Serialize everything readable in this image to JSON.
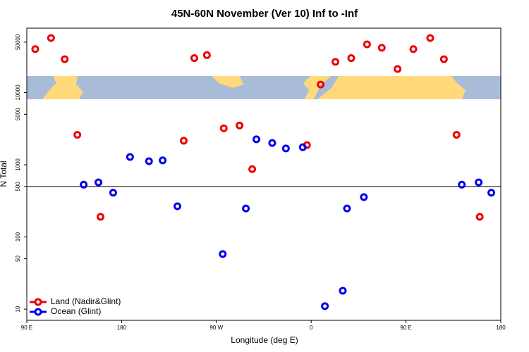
{
  "chart_data": {
    "type": "scatter",
    "title": "45N-60N November (Ver 10)   Inf to -Inf",
    "x_label": "Longitude (deg E)",
    "y_label": "N Total",
    "xlim": [
      90,
      540
    ],
    "ylim": [
      7,
      78000
    ],
    "log_y": true,
    "xticks": [
      {
        "value": 90,
        "label": "90 E"
      },
      {
        "value": 180,
        "label": "180"
      },
      {
        "value": 270,
        "label": "90 W"
      },
      {
        "value": 360,
        "label": "0"
      },
      {
        "value": 450,
        "label": "90 E"
      },
      {
        "value": 540,
        "label": "180"
      }
    ],
    "yticks": [
      10,
      50,
      100,
      500,
      1000,
      5000,
      10000,
      50000
    ],
    "reference_line": 500,
    "legend": "bottom-left",
    "series": [
      {
        "name": "Land (Nadir&Glint)",
        "color": "#ee0000",
        "x": [
          98,
          113,
          126,
          138,
          160,
          239,
          249,
          261,
          277,
          292,
          304,
          356,
          369,
          383,
          398,
          413,
          427,
          442,
          457,
          473,
          486,
          498,
          520
        ],
        "values": [
          40000,
          57000,
          29000,
          2600,
          190,
          2150,
          30000,
          33000,
          3200,
          3500,
          870,
          1870,
          12900,
          26600,
          30000,
          46600,
          41700,
          21200,
          40000,
          57000,
          29000,
          2600,
          190
        ]
      },
      {
        "name": "Ocean (Glint)",
        "color": "#0000ee",
        "x": [
          144,
          158,
          172,
          188,
          206,
          219,
          233,
          276,
          298,
          308,
          323,
          336,
          352,
          373,
          390,
          394,
          410,
          503,
          519,
          531
        ],
        "values": [
          530,
          570,
          410,
          1280,
          1120,
          1150,
          266,
          58,
          248,
          2250,
          2000,
          1680,
          1750,
          11,
          18,
          248,
          356,
          530,
          570,
          410
        ]
      }
    ]
  }
}
